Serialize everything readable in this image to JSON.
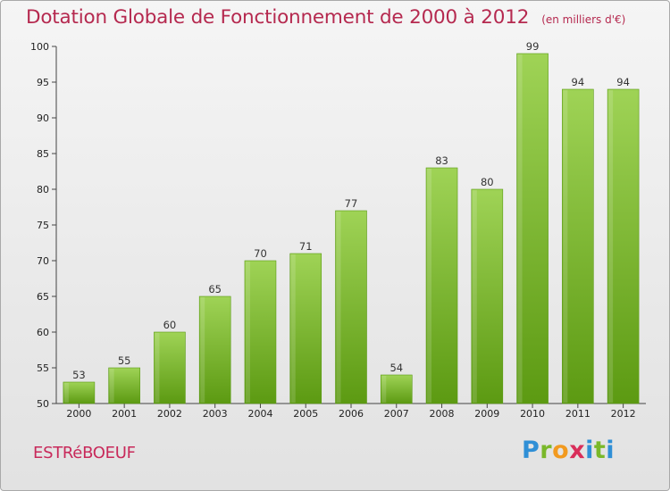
{
  "header": {
    "title": "Dotation Globale de Fonctionnement de 2000 à 2012",
    "subtitle": "(en milliers d'€)"
  },
  "commune": "ESTRéBOEUF",
  "logo": {
    "text": "Proxiti"
  },
  "colors": {
    "bar_light": "#9fd356",
    "bar_dark": "#5c9a12",
    "title": "#b5294f"
  },
  "chart_data": {
    "type": "bar",
    "title": "Dotation Globale de Fonctionnement de 2000 à 2012",
    "subtitle": "(en milliers d'€)",
    "categories": [
      "2000",
      "2001",
      "2002",
      "2003",
      "2004",
      "2005",
      "2006",
      "2007",
      "2008",
      "2009",
      "2010",
      "2011",
      "2012"
    ],
    "values": [
      53,
      55,
      60,
      65,
      70,
      71,
      77,
      54,
      83,
      80,
      99,
      94,
      94
    ],
    "ylim": [
      50,
      100
    ],
    "yticks": [
      50,
      55,
      60,
      65,
      70,
      75,
      80,
      85,
      90,
      95,
      100
    ],
    "grid": false,
    "legend": "none"
  }
}
